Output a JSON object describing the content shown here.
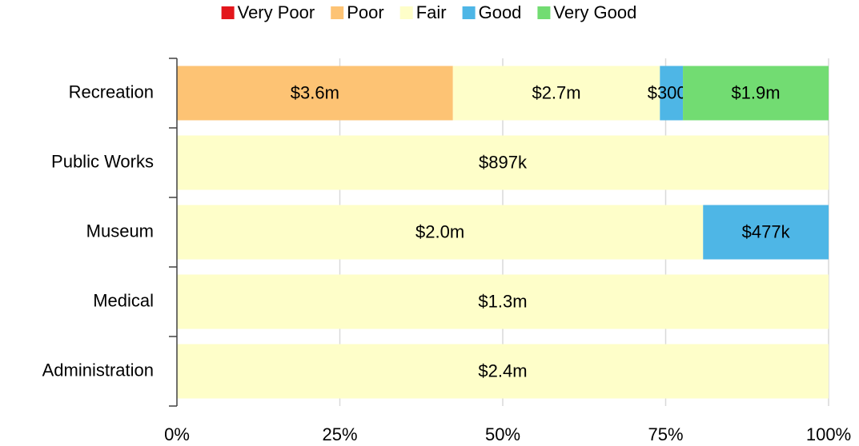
{
  "chart_data": {
    "type": "bar",
    "orientation": "horizontal",
    "stacked": "percent",
    "categories": [
      "Recreation",
      "Public Works",
      "Museum",
      "Medical",
      "Administration"
    ],
    "series": [
      {
        "name": "Very Poor",
        "color": "#e3161b",
        "values": [
          null,
          null,
          null,
          null,
          null
        ],
        "value_labels": [
          null,
          null,
          null,
          null,
          null
        ]
      },
      {
        "name": "Poor",
        "color": "#fdc374",
        "values": [
          3600000,
          null,
          null,
          null,
          null
        ],
        "value_labels": [
          "$3.6m",
          null,
          null,
          null,
          null
        ]
      },
      {
        "name": "Fair",
        "color": "#fefec9",
        "values": [
          2700000,
          897000,
          2000000,
          1300000,
          2400000
        ],
        "value_labels": [
          "$2.7m",
          "$897k",
          "$2.0m",
          "$1.3m",
          "$2.4m"
        ]
      },
      {
        "name": "Good",
        "color": "#4eb6e6",
        "values": [
          300000,
          null,
          477000,
          null,
          null
        ],
        "value_labels": [
          "$300k",
          null,
          "$477k",
          null,
          null
        ]
      },
      {
        "name": "Very Good",
        "color": "#72dc72",
        "values": [
          1900000,
          null,
          null,
          null,
          null
        ],
        "value_labels": [
          "$1.9m",
          null,
          null,
          null,
          null
        ]
      }
    ],
    "xlim": [
      0,
      100
    ],
    "xticks": [
      {
        "value": 0,
        "label": "0%"
      },
      {
        "value": 25,
        "label": "25%"
      },
      {
        "value": 50,
        "label": "50%"
      },
      {
        "value": 75,
        "label": "75%"
      },
      {
        "value": 100,
        "label": "100%"
      }
    ],
    "grid": true,
    "legend": "top"
  }
}
